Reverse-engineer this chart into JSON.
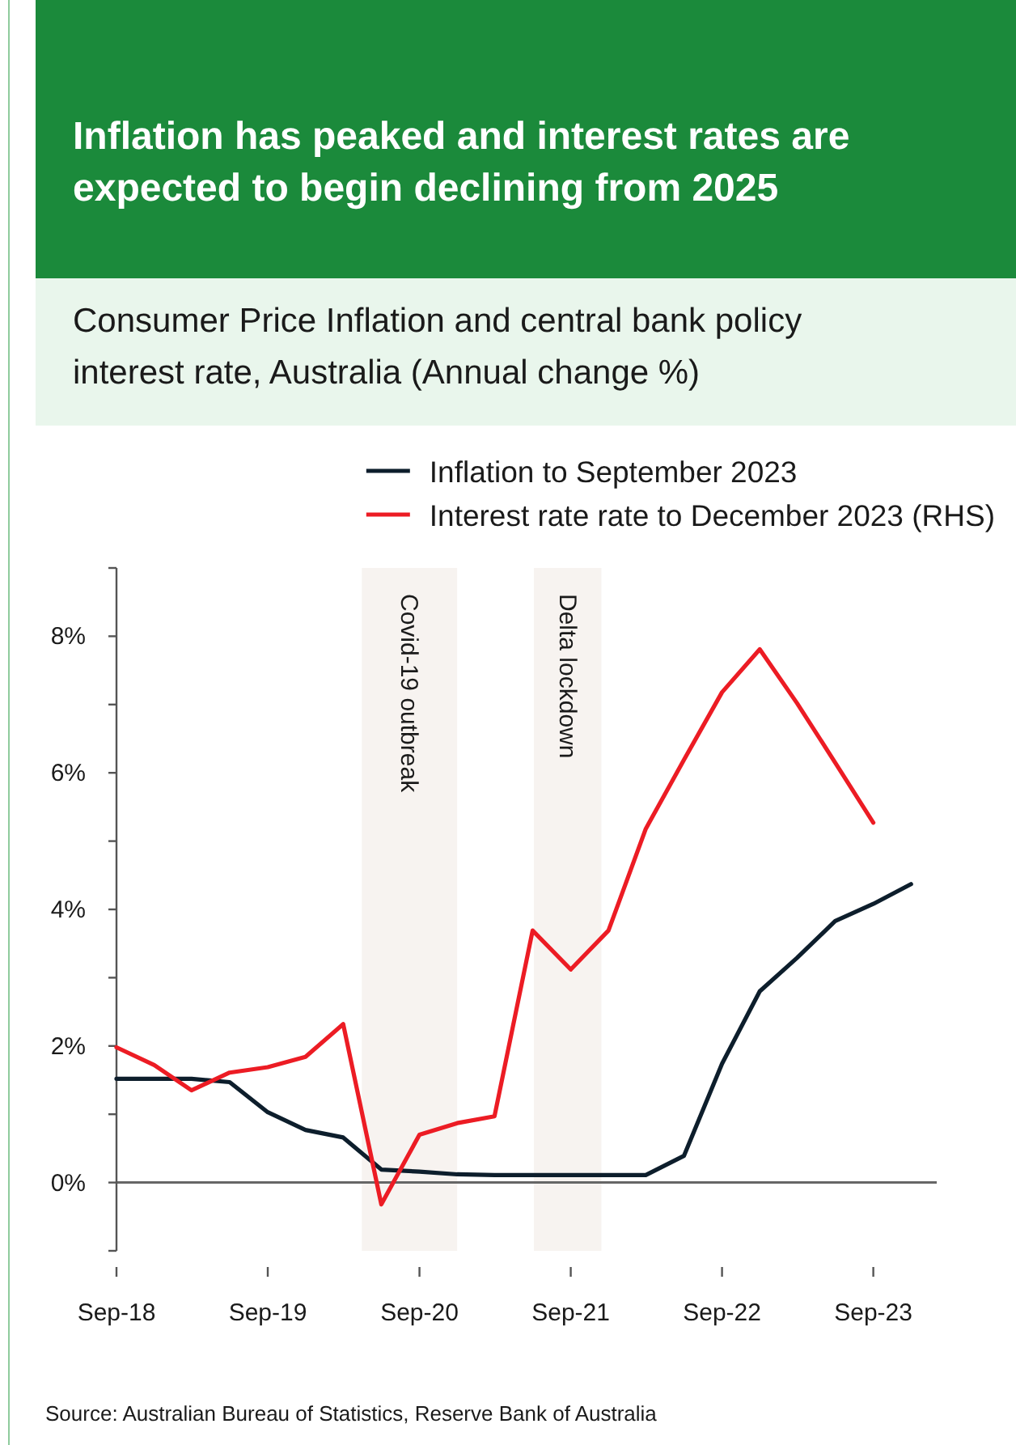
{
  "chart_data": {
    "type": "line",
    "title": "Inflation has peaked and interest rates are expected to begin declining from 2025",
    "subtitle": "Consumer Price Inflation and central bank policy interest rate, Australia (Annual change %)",
    "x": [
      "2018-09",
      "2018-12",
      "2019-03",
      "2019-06",
      "2019-09",
      "2019-12",
      "2020-03",
      "2020-06",
      "2020-09",
      "2020-12",
      "2021-03",
      "2021-06",
      "2021-09",
      "2021-12",
      "2022-03",
      "2022-06",
      "2022-09",
      "2022-12",
      "2023-03",
      "2023-06",
      "2023-09",
      "2023-12"
    ],
    "series": [
      {
        "name": "Inflation to September 2023",
        "color": "#0d1e2c",
        "values": [
          1.52,
          1.52,
          1.52,
          1.47,
          1.03,
          0.77,
          0.66,
          0.19,
          0.16,
          0.12,
          0.11,
          0.11,
          0.11,
          0.11,
          0.11,
          0.39,
          1.74,
          2.8,
          3.29,
          3.83,
          4.08,
          4.37
        ]
      },
      {
        "name": "Interest rate rate to December 2023 (RHS)",
        "color": "#ec1c24",
        "x": [
          "2018-09",
          "2018-12",
          "2019-03",
          "2019-06",
          "2019-09",
          "2019-12",
          "2020-03",
          "2020-06",
          "2020-09",
          "2020-12",
          "2021-03",
          "2021-06",
          "2021-09",
          "2021-12",
          "2022-03",
          "2022-06",
          "2022-09",
          "2022-12",
          "2023-03",
          "2023-06",
          "2023-09"
        ],
        "values": [
          1.98,
          1.72,
          1.35,
          1.61,
          1.69,
          1.84,
          2.32,
          -0.32,
          0.7,
          0.87,
          0.97,
          3.69,
          3.12,
          3.69,
          5.18,
          6.19,
          7.18,
          7.81,
          7.02,
          6.15,
          5.27
        ]
      }
    ],
    "xlim": [
      "2018-09",
      "2024-02"
    ],
    "xticks": [
      {
        "value": "2018-09",
        "label": "Sep-18"
      },
      {
        "value": "2019-09",
        "label": "Sep-19"
      },
      {
        "value": "2020-09",
        "label": "Sep-20"
      },
      {
        "value": "2021-09",
        "label": "Sep-21"
      },
      {
        "value": "2022-09",
        "label": "Sep-22"
      },
      {
        "value": "2023-09",
        "label": "Sep-23"
      }
    ],
    "ylim": [
      -1,
      9
    ],
    "yticks": [
      {
        "value": -1,
        "label": null
      },
      {
        "value": 0,
        "label": "0%"
      },
      {
        "value": 1,
        "label": null
      },
      {
        "value": 2,
        "label": "2%"
      },
      {
        "value": 3,
        "label": null
      },
      {
        "value": 4,
        "label": "4%"
      },
      {
        "value": 5,
        "label": null
      },
      {
        "value": 6,
        "label": "6%"
      },
      {
        "value": 7,
        "label": null
      },
      {
        "value": 8,
        "label": "8%"
      },
      {
        "value": 9,
        "label": null
      }
    ],
    "bands": [
      {
        "axis": "x",
        "from": "2020-04-15",
        "to": "2020-12",
        "label": "Covid-19 outbreak",
        "color": "#f7f3f0"
      },
      {
        "axis": "x",
        "from": "2021-06-04",
        "to": "2021-11-14",
        "label": "Delta lockdown",
        "color": "#f7f3f0"
      }
    ],
    "ref_lines": [
      {
        "axis": "y",
        "value": 0,
        "color": "#666666"
      }
    ],
    "legend": "top right",
    "annotations": [
      "Source: Australian Bureau of Statistics, Reserve Bank of Australia"
    ]
  }
}
